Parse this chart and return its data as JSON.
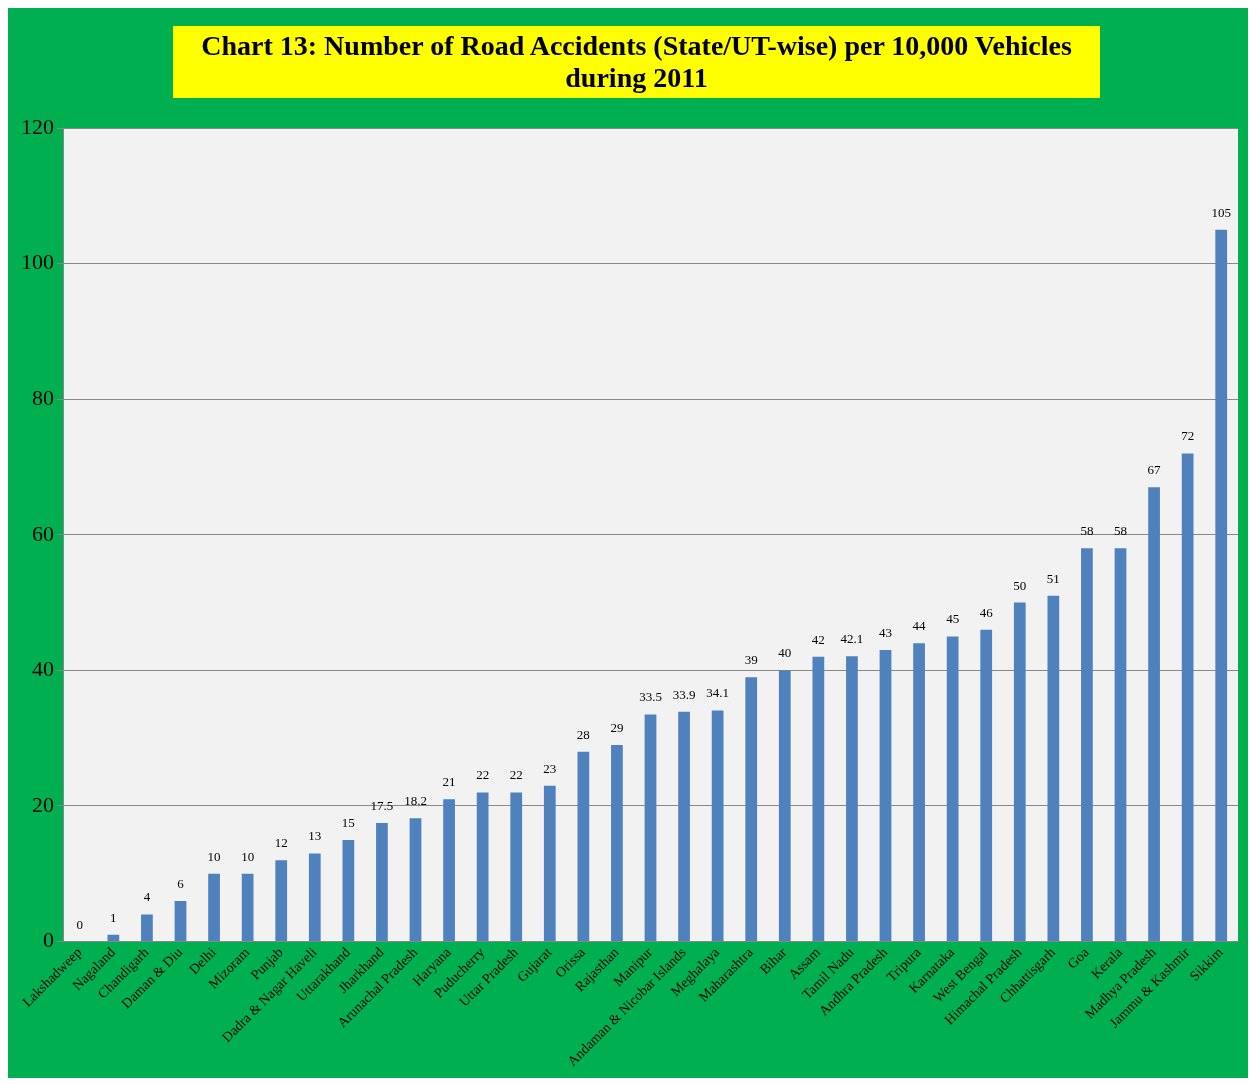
{
  "chart_data": {
    "type": "bar",
    "title": "Chart 13: Number of Road Accidents (State/UT-wise) per 10,000 Vehicles during 2011",
    "categories": [
      "Lakshadweep",
      "Nagaland",
      "Chandigarh",
      "Daman & Diu",
      "Delhi",
      "Mizoram",
      "Punjab",
      "Dadra & Nagar Haveli",
      "Uttarakhand",
      "Jharkhand",
      "Arunachal Pradesh",
      "Haryana",
      "Puducherry",
      "Uttar Pradesh",
      "Gujarat",
      "Orissa",
      "Rajasthan",
      "Manipur",
      "Andaman & Nicobar Islands",
      "Meghalaya",
      "Maharashtra",
      "Bihar",
      "Assam",
      "Tamil Nadu",
      "Andhra Pradesh",
      "Tripura",
      "Karnataka",
      "West Bengal",
      "Himachal Pradesh",
      "Chhattisgarh",
      "Goa",
      "Kerala",
      "Madhya Pradesh",
      "Jammu & Kashmir",
      "Sikkim"
    ],
    "values": [
      0,
      1,
      4,
      6,
      10,
      10,
      12,
      13,
      15,
      17.5,
      18.2,
      21,
      22,
      22,
      23,
      28,
      29,
      33.5,
      33.9,
      34.1,
      39,
      40,
      42,
      42.1,
      43,
      44,
      45,
      46,
      50,
      51,
      58,
      58,
      67,
      72,
      105
    ],
    "color": "#4f81bd",
    "ylim": [
      0,
      120
    ],
    "yticks": [
      0,
      20,
      40,
      60,
      80,
      100,
      120
    ],
    "grid": "y",
    "data_labels": true,
    "legend": false
  }
}
